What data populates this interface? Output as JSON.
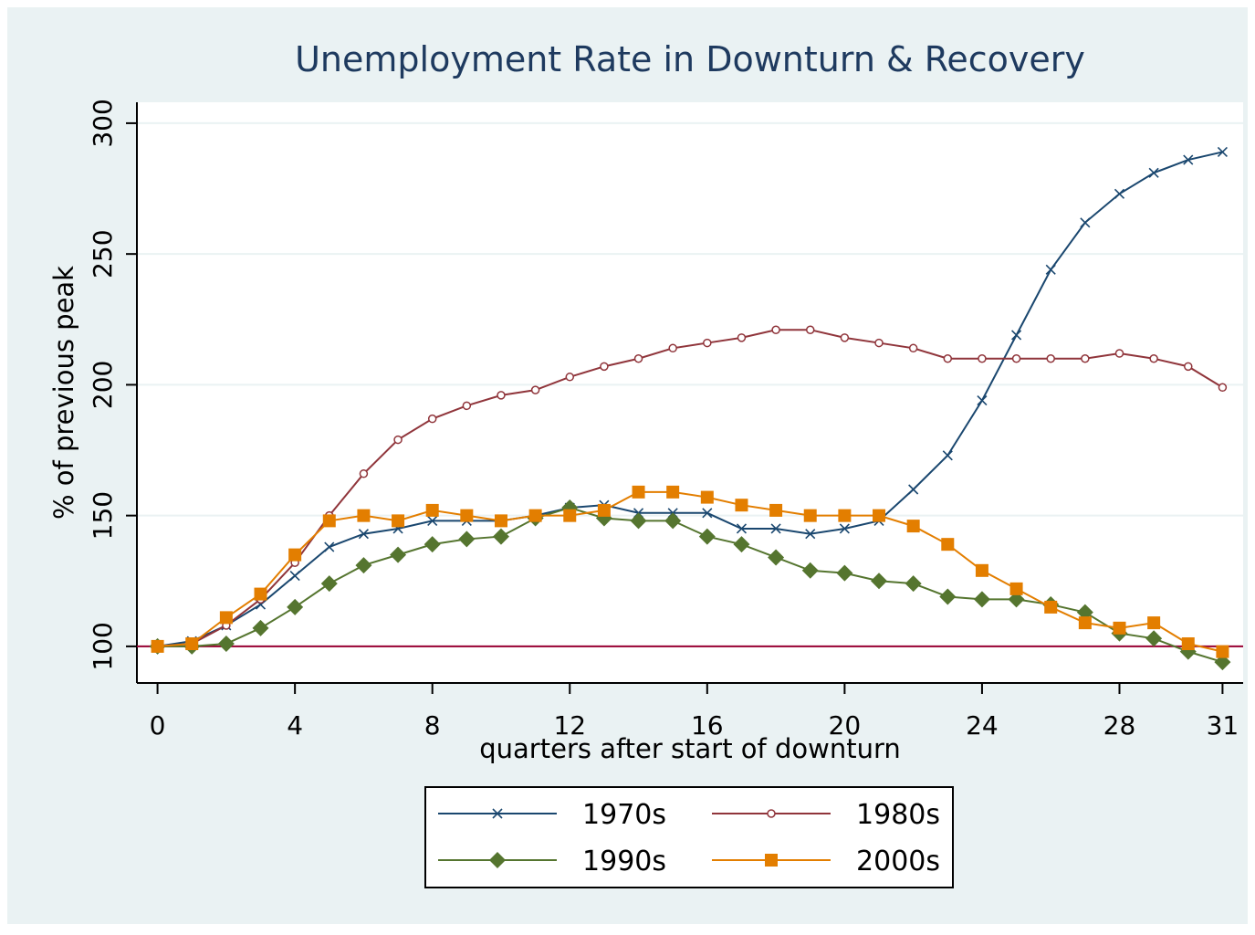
{
  "chart_data": {
    "type": "line",
    "title": "Unemployment Rate in Downturn & Recovery",
    "x_label": "quarters after start of downturn",
    "y_label": "% of previous peak",
    "x": [
      0,
      1,
      2,
      3,
      4,
      5,
      6,
      7,
      8,
      9,
      10,
      11,
      12,
      13,
      14,
      15,
      16,
      17,
      18,
      19,
      20,
      21,
      22,
      23,
      24,
      25,
      26,
      27,
      28,
      29,
      30,
      31
    ],
    "series": [
      {
        "name": "1970s",
        "color": "#1a476f",
        "marker": "x",
        "values": [
          100,
          102,
          108,
          116,
          127,
          138,
          143,
          145,
          148,
          148,
          148,
          150,
          153,
          154,
          151,
          151,
          151,
          145,
          145,
          143,
          145,
          148,
          160,
          173,
          194,
          219,
          244,
          262,
          273,
          281,
          286,
          289
        ]
      },
      {
        "name": "1980s",
        "color": "#90353b",
        "marker": "circle",
        "values": [
          100,
          101,
          108,
          118,
          132,
          150,
          166,
          179,
          187,
          192,
          196,
          198,
          203,
          207,
          210,
          214,
          216,
          218,
          221,
          221,
          218,
          216,
          214,
          210,
          210,
          210,
          210,
          210,
          212,
          210,
          207,
          199
        ]
      },
      {
        "name": "1990s",
        "color": "#55752f",
        "marker": "diamond",
        "values": [
          100,
          100,
          101,
          107,
          115,
          124,
          131,
          135,
          139,
          141,
          142,
          149,
          153,
          149,
          148,
          148,
          142,
          139,
          134,
          129,
          128,
          125,
          124,
          119,
          118,
          118,
          116,
          113,
          105,
          103,
          98,
          94
        ]
      },
      {
        "name": "2000s",
        "color": "#e37e00",
        "marker": "square",
        "values": [
          100,
          101,
          111,
          120,
          135,
          148,
          150,
          148,
          152,
          150,
          148,
          150,
          150,
          152,
          159,
          159,
          157,
          154,
          152,
          150,
          150,
          150,
          146,
          139,
          129,
          122,
          115,
          109,
          107,
          109,
          101,
          98
        ]
      }
    ],
    "xlim": [
      -0.6,
      31.6
    ],
    "ylim": [
      86,
      308
    ],
    "xticks": [
      0,
      4,
      8,
      12,
      16,
      20,
      24,
      28,
      31
    ],
    "yticks": [
      100,
      150,
      200,
      250,
      300
    ],
    "grid": true,
    "reference_line": 100,
    "reference_color": "#990033",
    "legend_position": "bottom"
  }
}
